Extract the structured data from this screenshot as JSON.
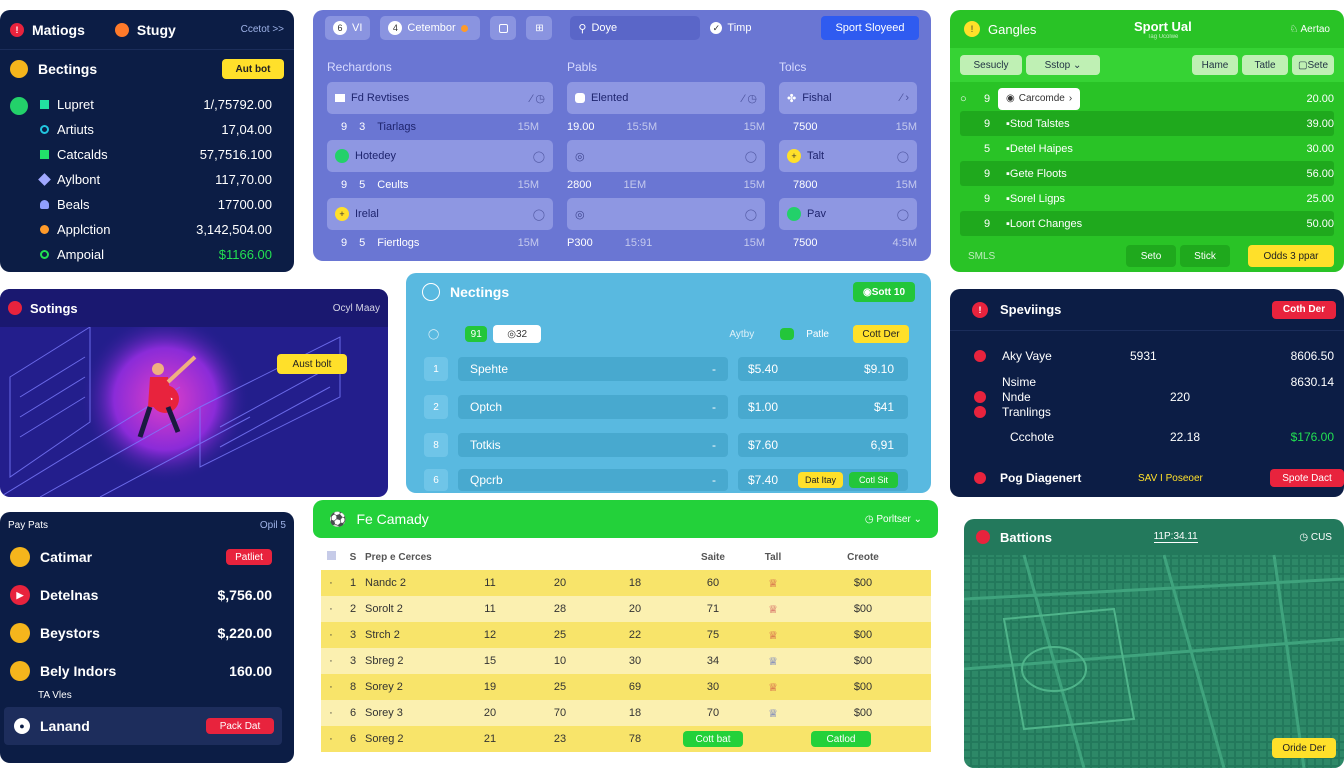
{
  "p1": {
    "tab1": "Matiogs",
    "tab2": "Stugy",
    "link": "Ccetot >>",
    "title": "Bectings",
    "btn": "Aut bot",
    "items": [
      {
        "label": "Lupret",
        "value": "1/,75792.00"
      },
      {
        "label": "Artiuts",
        "value": "17,04.00"
      },
      {
        "label": "Catcalds",
        "value": "57,7516.100"
      },
      {
        "label": "Aylbont",
        "value": "117,70.00"
      },
      {
        "label": "Beals",
        "value": "17700.00"
      },
      {
        "label": "Applction",
        "value": "3,142,504.00"
      },
      {
        "label": "Ampoial",
        "value": "$1166.00"
      }
    ],
    "colors": {
      "bg": "#0c1d45",
      "accent": "#ffe02a",
      "green": "#22e052"
    }
  },
  "p2": {
    "num": "VI",
    "tab": "Cetembor",
    "search": "Doye",
    "timp": "Timp",
    "cta": "Sport Sloyeed",
    "cols": [
      {
        "head": "Rechardons",
        "c1": "Fd Revtises",
        "m1": [
          "9",
          "3",
          "Tiarlags",
          "15M"
        ],
        "c2": "Hotedey",
        "m2": [
          "9",
          "5",
          "Ceults",
          "15M"
        ],
        "c3": "Irelal",
        "m3": [
          "9",
          "5",
          "Fiertlogs",
          "15M"
        ]
      },
      {
        "head": "Pabls",
        "c1": "Elented",
        "m1": [
          "19.00",
          "15:5M",
          "15M"
        ],
        "c2": "",
        "m2": [
          "2800",
          "1EM",
          "15M"
        ],
        "c3": "",
        "m3": [
          "P300",
          "15:91",
          "15M"
        ]
      },
      {
        "head": "Tolcs",
        "c1": "Fishal",
        "m1": [
          "7500",
          "15M"
        ],
        "c2": "Talt",
        "m2": [
          "7800",
          "15M"
        ],
        "c3": "Pav",
        "m3": [
          "7500",
          "4:5M"
        ]
      }
    ]
  },
  "p3": {
    "title": "Gangles",
    "center_title": "Sport Ual",
    "center_sub": "Tag Ucolwe",
    "right": "Aertao",
    "filter1": "Sesucly",
    "filter2": "Sstop",
    "btn1": "Hame",
    "btn2": "Tatle",
    "btn3": "Sete",
    "rows": [
      {
        "n": "9",
        "label": "Carcomde",
        "value": "20.00"
      },
      {
        "n": "9",
        "label": "Stod Talstes",
        "value": "39.00"
      },
      {
        "n": "5",
        "label": "Detel Haipes",
        "value": "30.00"
      },
      {
        "n": "9",
        "label": "Gete Floots",
        "value": "56.00"
      },
      {
        "n": "9",
        "label": "Sorel Ligps",
        "value": "25.00"
      },
      {
        "n": "9",
        "label": "Loort Changes",
        "value": "50.00"
      }
    ],
    "foot": "SMLS",
    "f1": "Seto",
    "f2": "Stick",
    "f3": "Odds 3 ppar"
  },
  "p4": {
    "title": "Sotings",
    "right": "Ocyl Maay",
    "btn": "Aust bolt"
  },
  "p5": {
    "title": "Nectings",
    "badge": "Sott 10",
    "t1": "91",
    "t2": "32",
    "r1": "Aytby",
    "r2": "Patle",
    "r3": "Cott Der",
    "rows": [
      {
        "n": "1",
        "name": "Spehte",
        "v1": "$5.40",
        "v2": "$9.10"
      },
      {
        "n": "2",
        "name": "Optch",
        "v1": "$1.00",
        "v2": "$41"
      },
      {
        "n": "8",
        "name": "Totkis",
        "v1": "$7.60",
        "v2": "6,91"
      },
      {
        "n": "6",
        "name": "Qpcrb",
        "v1": "$7.40",
        "v2": ""
      }
    ],
    "b1": "Dat Itay",
    "b2": "Cotl Sit"
  },
  "p6": {
    "title": "Speviings",
    "btn": "Coth Der",
    "rows": [
      {
        "label": "Aky Vaye",
        "v1": "5931",
        "v2": "8606.50"
      },
      {
        "label": "Nsime",
        "v1": "",
        "v2": "8630.14"
      },
      {
        "label": "Nnde",
        "v1": "220",
        "v2": ""
      },
      {
        "label": "Tranlings",
        "v1": "",
        "v2": ""
      },
      {
        "label": "Ccchote",
        "v1": "22.18",
        "v2": "$176.00"
      }
    ],
    "foot": "Pog Diagenert",
    "foot_mid": "SAV I Poseoer",
    "foot_btn": "Spote Dact"
  },
  "p7": {
    "head": "Pay Pats",
    "link": "Opil 5",
    "btn": "Patliet",
    "btn2": "Pack Dat",
    "items": [
      {
        "label": "Catimar",
        "value": ""
      },
      {
        "label": "Detelnas",
        "value": "$,756.00"
      },
      {
        "label": "Beystors",
        "value": "$,220.00"
      },
      {
        "label": "Bely Indors",
        "value": "160.00"
      }
    ],
    "sub": "TA Vles",
    "last": "Lanand"
  },
  "p8": {
    "title": "Fe Camady",
    "right": "Porltser",
    "head": [
      "S",
      "Prep e Cerces",
      "",
      "",
      "",
      "Saite",
      "Tall",
      "Creote"
    ],
    "rows": [
      [
        "1",
        "Nandc 2",
        "11",
        "20",
        "18",
        "60",
        "$00"
      ],
      [
        "2",
        "Sorolt 2",
        "11",
        "28",
        "20",
        "71",
        "$00"
      ],
      [
        "3",
        "Strch 2",
        "12",
        "25",
        "22",
        "75",
        "$00"
      ],
      [
        "3",
        "Sbreg 2",
        "15",
        "10",
        "30",
        "34",
        "$00"
      ],
      [
        "8",
        "Sorey 2",
        "19",
        "25",
        "69",
        "30",
        "$00"
      ],
      [
        "6",
        "Sorey 3",
        "20",
        "70",
        "18",
        "70",
        "$00"
      ],
      [
        "6",
        "Soreg 2",
        "21",
        "23",
        "78",
        "",
        ""
      ]
    ],
    "b1": "Cott bat",
    "b2": "Catlod"
  },
  "p9": {
    "title": "Battions",
    "tab": "11P:34.11",
    "right": "CUS",
    "btn": "Oride Der"
  }
}
